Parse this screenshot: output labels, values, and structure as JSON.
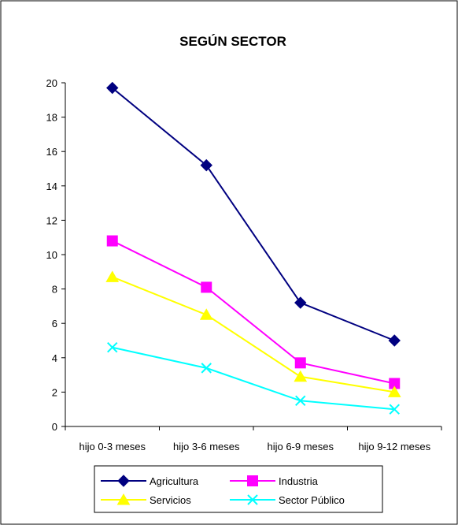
{
  "chart_data": {
    "type": "line",
    "title": "SEGÚN SECTOR",
    "xlabel": "",
    "ylabel": "",
    "categories": [
      "hijo 0-3 meses",
      "hijo 3-6 meses",
      "hijo 6-9 meses",
      "hijo 9-12 meses"
    ],
    "ylim": [
      0,
      20
    ],
    "yticks": [
      0,
      2,
      4,
      6,
      8,
      10,
      12,
      14,
      16,
      18,
      20
    ],
    "grid": false,
    "legend_position": "bottom",
    "series": [
      {
        "name": "Agricultura",
        "values": [
          19.7,
          15.2,
          7.2,
          5.0
        ],
        "color": "#000080",
        "marker": "diamond"
      },
      {
        "name": "Industria",
        "values": [
          10.8,
          8.1,
          3.7,
          2.5
        ],
        "color": "#ff00ff",
        "marker": "square"
      },
      {
        "name": "Servicios",
        "values": [
          8.7,
          6.5,
          2.9,
          2.0
        ],
        "color": "#ffff00",
        "marker": "triangle"
      },
      {
        "name": "Sector Público",
        "values": [
          4.6,
          3.4,
          1.5,
          1.0
        ],
        "color": "#00ffff",
        "marker": "x"
      }
    ]
  }
}
